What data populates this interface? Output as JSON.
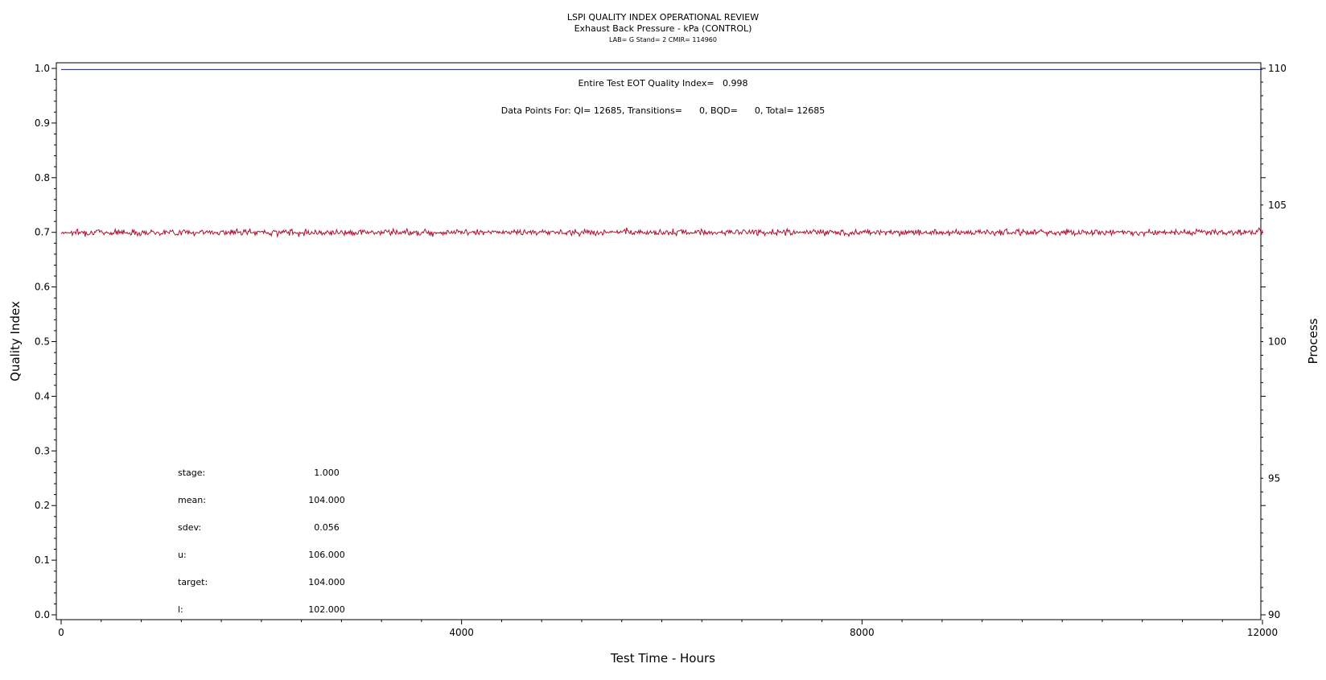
{
  "chart_data": {
    "type": "line",
    "title": "LSPI QUALITY INDEX OPERATIONAL REVIEW",
    "subtitle": "Exhaust Back Pressure - kPa (CONTROL)",
    "subtitle2": "LAB= G Stand= 2 CMIR= 114960",
    "xlabel": "Test Time - Hours",
    "ylabel": "Quality Index",
    "y2label": "Process",
    "xlim": [
      0,
      12000
    ],
    "ylim": [
      0.0,
      1.0
    ],
    "y2lim": [
      90,
      110
    ],
    "x_ticks": [
      "0",
      "4000",
      "8000",
      "12000"
    ],
    "y_ticks": [
      "0.0",
      "0.1",
      "0.2",
      "0.3",
      "0.4",
      "0.5",
      "0.6",
      "0.7",
      "0.8",
      "0.9",
      "1.0"
    ],
    "y2_ticks": [
      "90",
      "95",
      "100",
      "105",
      "110"
    ],
    "grid": false,
    "annotations": {
      "eot": "Entire Test EOT Quality Index=   0.998",
      "data_points": "Data Points For: QI= 12685, Transitions=      0, BQD=      0, Total= 12685"
    },
    "stats": [
      {
        "label": "stage:",
        "value": "1.000"
      },
      {
        "label": "mean:",
        "value": "104.000"
      },
      {
        "label": "sdev:",
        "value": "0.056"
      },
      {
        "label": "u:",
        "value": "106.000"
      },
      {
        "label": "target:",
        "value": "104.000"
      },
      {
        "label": "l:",
        "value": "102.000"
      }
    ],
    "series": [
      {
        "axis": "left",
        "color": "#1a1a80",
        "x": [
          0,
          12000
        ],
        "y": [
          0.998,
          0.998
        ]
      },
      {
        "axis": "right",
        "color": "#b01030",
        "mean": 104.0,
        "sdev": 0.056,
        "x_range": [
          0,
          12000
        ],
        "points": 12685
      }
    ]
  }
}
